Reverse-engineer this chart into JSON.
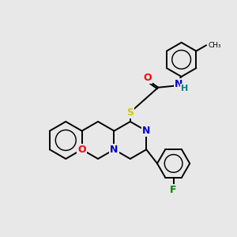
{
  "background_color": "#e8e8e8",
  "bond_color": "#000000",
  "atom_colors": {
    "N": "#0000cc",
    "O": "#ff0000",
    "S": "#cccc00",
    "F": "#008800",
    "H": "#008080",
    "C": "#000000"
  },
  "bg": "#e8e8e8",
  "lw": 1.4,
  "ring_r": 20,
  "fp_r": 18,
  "tol_r": 20
}
